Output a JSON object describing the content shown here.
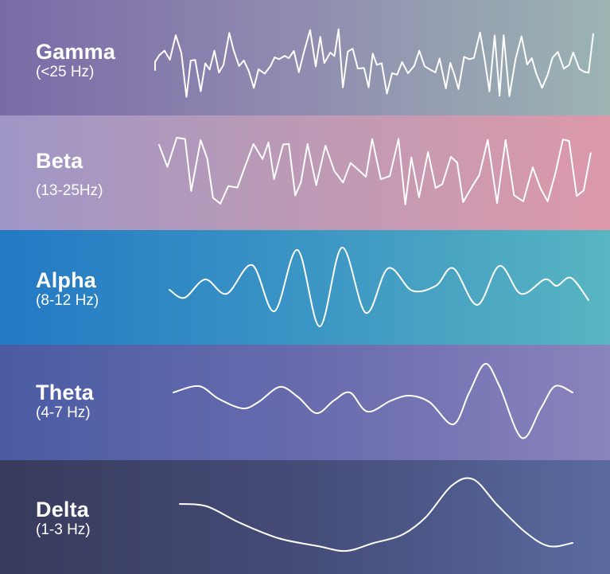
{
  "bands": [
    {
      "name": "Gamma",
      "range": "(<25 Hz)"
    },
    {
      "name": "Beta",
      "range": "(13-25Hz)"
    },
    {
      "name": "Alpha",
      "range": "(8-12 Hz)"
    },
    {
      "name": "Theta",
      "range": "(4-7 Hz)"
    },
    {
      "name": "Delta",
      "range": "(1-3 Hz)"
    }
  ]
}
